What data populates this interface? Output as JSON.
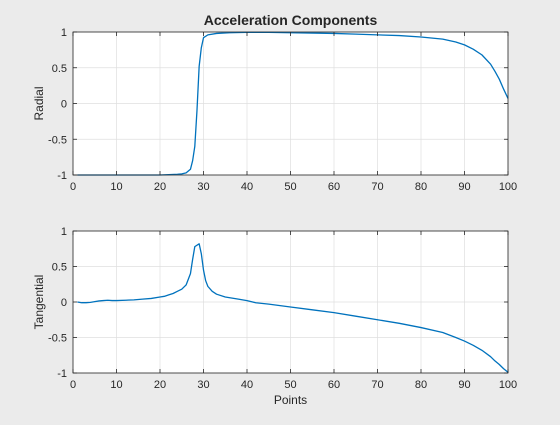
{
  "figure": {
    "background": "#ebebeb",
    "axes_background": "#ffffff",
    "line_color": "#0072bd",
    "grid": true
  },
  "chart_data": [
    {
      "type": "line",
      "title": "Acceleration Components",
      "xlabel": "",
      "ylabel": "Radial",
      "xlim": [
        0,
        100
      ],
      "ylim": [
        -1,
        1
      ],
      "xticks": [
        0,
        10,
        20,
        30,
        40,
        50,
        60,
        70,
        80,
        90,
        100
      ],
      "xtick_labels": [
        "0",
        "10",
        "20",
        "30",
        "40",
        "50",
        "60",
        "70",
        "80",
        "90",
        "100"
      ],
      "yticks": [
        -1,
        -0.5,
        0,
        0.5,
        1
      ],
      "ytick_labels": [
        "-1",
        "-0.5",
        "0",
        "0.5",
        "1"
      ],
      "series": [
        {
          "x": [
            1,
            5,
            10,
            15,
            20,
            22,
            24,
            25,
            26,
            27,
            27.5,
            28,
            28.5,
            29,
            29.5,
            30,
            31,
            33,
            36,
            40,
            45,
            50,
            55,
            60,
            65,
            70,
            75,
            80,
            85,
            88,
            90,
            92,
            94,
            96,
            97,
            98,
            99,
            100
          ],
          "y": [
            -1,
            -1,
            -1,
            -1,
            -1,
            -0.995,
            -0.99,
            -0.985,
            -0.97,
            -0.92,
            -0.8,
            -0.6,
            -0.1,
            0.52,
            0.78,
            0.92,
            0.96,
            0.98,
            0.99,
            0.995,
            0.995,
            0.99,
            0.985,
            0.98,
            0.97,
            0.96,
            0.95,
            0.93,
            0.9,
            0.86,
            0.82,
            0.76,
            0.68,
            0.55,
            0.45,
            0.34,
            0.2,
            0.07
          ]
        }
      ]
    },
    {
      "type": "line",
      "title": "",
      "xlabel": "Points",
      "ylabel": "Tangential",
      "xlim": [
        0,
        100
      ],
      "ylim": [
        -1,
        1
      ],
      "xticks": [
        0,
        10,
        20,
        30,
        40,
        50,
        60,
        70,
        80,
        90,
        100
      ],
      "xtick_labels": [
        "0",
        "10",
        "20",
        "30",
        "40",
        "50",
        "60",
        "70",
        "80",
        "90",
        "100"
      ],
      "yticks": [
        -1,
        -0.5,
        0,
        0.5,
        1
      ],
      "ytick_labels": [
        "-1",
        "-0.5",
        "0",
        "0.5",
        "1"
      ],
      "series": [
        {
          "x": [
            1,
            2,
            3,
            4,
            5,
            6,
            7,
            8,
            9,
            10,
            12,
            14,
            16,
            18,
            20,
            21,
            22,
            23,
            24,
            25,
            26,
            27,
            27.5,
            28,
            29,
            29.5,
            30,
            30.5,
            31,
            32,
            33,
            35,
            38,
            40,
            42,
            45,
            50,
            55,
            60,
            65,
            70,
            75,
            80,
            85,
            88,
            90,
            92,
            94,
            96,
            97,
            98,
            99,
            100
          ],
          "y": [
            0,
            -0.01,
            -0.01,
            -0.005,
            0.005,
            0.015,
            0.02,
            0.025,
            0.02,
            0.02,
            0.025,
            0.03,
            0.04,
            0.05,
            0.07,
            0.08,
            0.1,
            0.12,
            0.15,
            0.18,
            0.24,
            0.4,
            0.6,
            0.78,
            0.82,
            0.68,
            0.45,
            0.3,
            0.22,
            0.15,
            0.11,
            0.07,
            0.04,
            0.02,
            -0.01,
            -0.03,
            -0.07,
            -0.11,
            -0.15,
            -0.2,
            -0.25,
            -0.3,
            -0.36,
            -0.43,
            -0.5,
            -0.55,
            -0.61,
            -0.68,
            -0.77,
            -0.83,
            -0.88,
            -0.94,
            -0.99
          ]
        }
      ]
    }
  ]
}
